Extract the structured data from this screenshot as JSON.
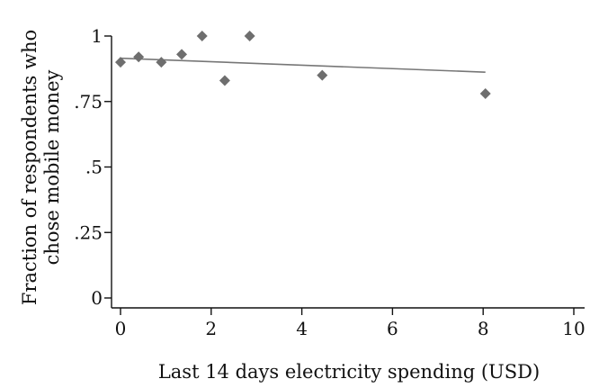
{
  "chart_data": {
    "type": "scatter",
    "xlabel": "Last 14 days electricity spending (USD)",
    "ylabel_lines": [
      "Fraction of respondents who",
      "chose mobile money"
    ],
    "xlim": [
      0,
      10
    ],
    "ylim": [
      0,
      1
    ],
    "x_ticks": [
      0,
      2,
      4,
      6,
      8,
      10
    ],
    "x_tick_labels": [
      "0",
      "2",
      "4",
      "6",
      "8",
      "10"
    ],
    "y_ticks": [
      0,
      0.25,
      0.5,
      0.75,
      1
    ],
    "y_tick_labels": [
      "0",
      ".25",
      ".5",
      ".75",
      "1"
    ],
    "grid": false,
    "legend": "none",
    "points": [
      {
        "x": 0.0,
        "y": 0.9
      },
      {
        "x": 0.4,
        "y": 0.92
      },
      {
        "x": 0.9,
        "y": 0.9
      },
      {
        "x": 1.35,
        "y": 0.93
      },
      {
        "x": 1.8,
        "y": 1.0
      },
      {
        "x": 2.3,
        "y": 0.83
      },
      {
        "x": 2.85,
        "y": 1.0
      },
      {
        "x": 4.45,
        "y": 0.85
      },
      {
        "x": 8.05,
        "y": 0.78
      }
    ],
    "fit_line": {
      "x": [
        0,
        8.05
      ],
      "y": [
        0.915,
        0.862
      ]
    },
    "colors": {
      "point": "#6e6e6e",
      "fit_line": "#777777",
      "axis": "#111111"
    }
  }
}
